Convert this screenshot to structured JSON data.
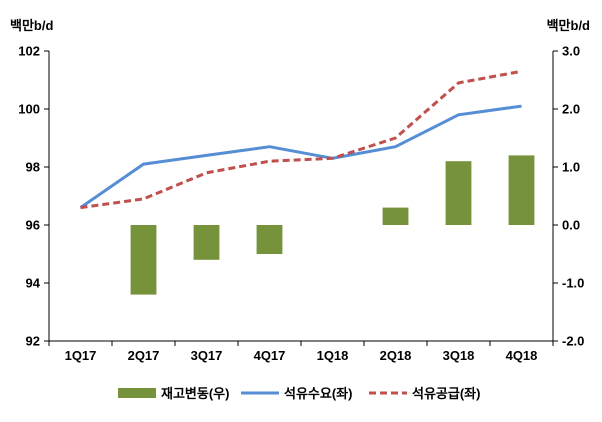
{
  "chart_data": {
    "type": "bar+line",
    "categories": [
      "1Q17",
      "2Q17",
      "3Q17",
      "4Q17",
      "1Q18",
      "2Q18",
      "3Q18",
      "4Q18"
    ],
    "left_axis": {
      "unit": "백만b/d",
      "range": [
        92,
        102
      ],
      "ticks": [
        "92",
        "94",
        "96",
        "98",
        "100",
        "102"
      ]
    },
    "right_axis": {
      "unit": "백만b/d",
      "range": [
        -2.0,
        3.0
      ],
      "ticks": [
        "-2.0",
        "-1.0",
        "0.0",
        "1.0",
        "2.0",
        "3.0"
      ]
    },
    "series": [
      {
        "name": "재고변동(우)",
        "kind": "bar",
        "axis": "right",
        "color": "#76933c",
        "values": [
          null,
          -1.2,
          -0.6,
          -0.5,
          null,
          0.3,
          1.1,
          1.2
        ]
      },
      {
        "name": "석유수요(좌)",
        "kind": "line",
        "axis": "left",
        "style": "solid",
        "color": "#558ed5",
        "values": [
          96.6,
          98.1,
          98.4,
          98.7,
          98.3,
          98.7,
          99.8,
          100.1
        ]
      },
      {
        "name": "석유공급(좌)",
        "kind": "line",
        "axis": "left",
        "style": "dashed",
        "color": "#c0504d",
        "values": [
          96.6,
          96.9,
          97.8,
          98.2,
          98.3,
          99.0,
          100.9,
          101.3
        ]
      }
    ],
    "grid": false,
    "legend_position": "bottom"
  }
}
